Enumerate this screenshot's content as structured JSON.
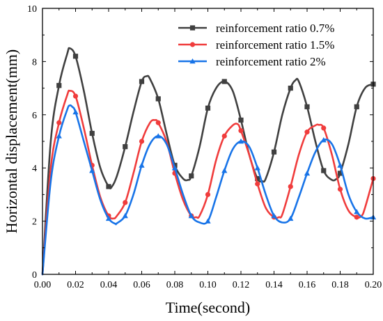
{
  "chart_data": {
    "type": "line",
    "title": "",
    "xlabel": "Time(second)",
    "ylabel": "Horizontal displacement(mm)",
    "xlim": [
      0.0,
      0.2
    ],
    "ylim": [
      0,
      10
    ],
    "x_ticks": [
      "0.00",
      "0.02",
      "0.04",
      "0.06",
      "0.08",
      "0.10",
      "0.12",
      "0.14",
      "0.16",
      "0.18",
      "0.20"
    ],
    "y_ticks": [
      "0",
      "2",
      "4",
      "6",
      "8",
      "10"
    ],
    "grid": false,
    "legend_position": "top-right",
    "series": [
      {
        "name": "reinforcement ratio 0.7%",
        "color": "#404040",
        "marker": "square",
        "x": [
          0,
          0.005,
          0.01,
          0.015,
          0.0165,
          0.02,
          0.025,
          0.03,
          0.035,
          0.04,
          0.042,
          0.045,
          0.05,
          0.055,
          0.06,
          0.063,
          0.065,
          0.07,
          0.075,
          0.08,
          0.085,
          0.088,
          0.09,
          0.095,
          0.1,
          0.105,
          0.11,
          0.115,
          0.12,
          0.125,
          0.13,
          0.133,
          0.135,
          0.14,
          0.145,
          0.15,
          0.153,
          0.155,
          0.16,
          0.165,
          0.17,
          0.175,
          0.178,
          0.18,
          0.185,
          0.19,
          0.195,
          0.2
        ],
        "y": [
          0,
          5.0,
          7.1,
          8.3,
          8.5,
          8.2,
          6.9,
          5.3,
          4.0,
          3.3,
          3.3,
          3.7,
          4.8,
          6.1,
          7.25,
          7.45,
          7.35,
          6.6,
          5.3,
          4.1,
          3.6,
          3.55,
          3.7,
          4.8,
          6.25,
          7.0,
          7.25,
          6.9,
          5.8,
          4.5,
          3.6,
          3.5,
          3.6,
          4.6,
          6.0,
          7.0,
          7.3,
          7.25,
          6.3,
          5.0,
          3.9,
          3.55,
          3.6,
          3.8,
          4.9,
          6.3,
          7.0,
          7.15
        ]
      },
      {
        "name": "reinforcement ratio 1.5%",
        "color": "#f03c3c",
        "marker": "circle",
        "x": [
          0,
          0.005,
          0.01,
          0.015,
          0.0165,
          0.02,
          0.025,
          0.03,
          0.035,
          0.04,
          0.043,
          0.045,
          0.05,
          0.055,
          0.06,
          0.065,
          0.068,
          0.07,
          0.075,
          0.08,
          0.085,
          0.09,
          0.093,
          0.095,
          0.1,
          0.105,
          0.11,
          0.115,
          0.118,
          0.12,
          0.125,
          0.13,
          0.135,
          0.14,
          0.143,
          0.145,
          0.15,
          0.155,
          0.16,
          0.165,
          0.167,
          0.17,
          0.175,
          0.18,
          0.185,
          0.19,
          0.193,
          0.195,
          0.2
        ],
        "y": [
          0,
          4.0,
          5.7,
          6.75,
          6.9,
          6.7,
          5.5,
          4.1,
          2.9,
          2.2,
          2.1,
          2.2,
          2.7,
          3.8,
          5.0,
          5.7,
          5.8,
          5.7,
          5.0,
          3.8,
          2.8,
          2.2,
          2.15,
          2.2,
          3.0,
          4.3,
          5.2,
          5.6,
          5.65,
          5.4,
          4.5,
          3.4,
          2.5,
          2.15,
          2.15,
          2.25,
          3.3,
          4.5,
          5.35,
          5.6,
          5.62,
          5.5,
          4.5,
          3.2,
          2.4,
          2.15,
          2.2,
          2.5,
          3.6
        ]
      },
      {
        "name": "reinforcement ratio 2%",
        "color": "#1874e8",
        "marker": "triangle",
        "x": [
          0,
          0.005,
          0.01,
          0.015,
          0.0165,
          0.018,
          0.02,
          0.025,
          0.03,
          0.035,
          0.04,
          0.044,
          0.045,
          0.05,
          0.055,
          0.06,
          0.065,
          0.07,
          0.075,
          0.08,
          0.085,
          0.09,
          0.095,
          0.1,
          0.105,
          0.11,
          0.115,
          0.12,
          0.125,
          0.13,
          0.135,
          0.14,
          0.145,
          0.15,
          0.155,
          0.16,
          0.165,
          0.17,
          0.175,
          0.18,
          0.185,
          0.19,
          0.195,
          0.2
        ],
        "y": [
          0,
          3.5,
          5.2,
          6.2,
          6.35,
          6.3,
          6.1,
          5.0,
          3.9,
          2.8,
          2.1,
          1.9,
          1.92,
          2.2,
          3.0,
          4.1,
          4.9,
          5.2,
          4.9,
          4.0,
          3.0,
          2.2,
          1.95,
          2.0,
          2.9,
          3.9,
          4.7,
          5.0,
          4.8,
          4.0,
          3.0,
          2.2,
          1.95,
          2.1,
          2.9,
          3.8,
          4.6,
          5.05,
          4.9,
          4.1,
          3.0,
          2.35,
          2.1,
          2.15
        ]
      }
    ]
  }
}
